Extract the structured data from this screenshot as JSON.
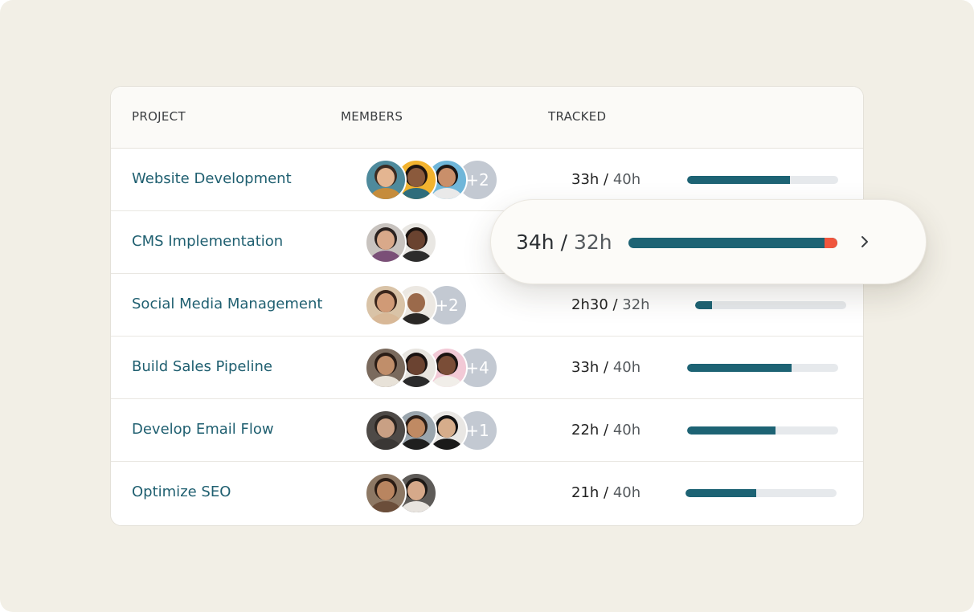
{
  "table": {
    "headers": {
      "project": "PROJECT",
      "members": "MEMBERS",
      "tracked": "TRACKED"
    },
    "rows": [
      {
        "name": "Website Development",
        "tracked": "33h",
        "total": "40h",
        "progress": 0.68,
        "avatars": [
          {
            "bg": "#4e8a9c",
            "skin": "#e4b591",
            "hair": "#3b2b22",
            "shirt": "#c58c3c"
          },
          {
            "bg": "#f2b32f",
            "skin": "#8b5a3c",
            "hair": "#1d1410",
            "shirt": "#2f6d7b"
          },
          {
            "bg": "#6fb6d9",
            "skin": "#c98f6a",
            "hair": "#1b1614",
            "shirt": "#e9e9e9"
          }
        ],
        "extra": "+2"
      },
      {
        "name": "CMS Implementation",
        "tracked": "34h",
        "total": "32h",
        "progress": 1.0,
        "avatars": [
          {
            "bg": "#c8c3bf",
            "skin": "#d9a98a",
            "hair": "#2a2220",
            "shirt": "#7a4f77"
          },
          {
            "bg": "#e9e7e3",
            "skin": "#6a4330",
            "hair": "#1a1310",
            "shirt": "#2c2c2c"
          }
        ],
        "extra": ""
      },
      {
        "name": "Social Media Management",
        "tracked": "2h30",
        "total": "32h",
        "progress": 0.11,
        "avatars": [
          {
            "bg": "#d9c3a7",
            "skin": "#d09a76",
            "hair": "#3a251b",
            "shirt": "#d8b897"
          },
          {
            "bg": "#ece8e2",
            "skin": "#9b6a4b",
            "hair": "#f1ede6",
            "shirt": "#2a2826"
          }
        ],
        "extra": "+2"
      },
      {
        "name": "Build Sales Pipeline",
        "tracked": "33h",
        "total": "40h",
        "progress": 0.69,
        "avatars": [
          {
            "bg": "#7a6a5d",
            "skin": "#c08e6a",
            "hair": "#2a1c15",
            "shirt": "#e8e2d8"
          },
          {
            "bg": "#e8e5e0",
            "skin": "#6b4331",
            "hair": "#191211",
            "shirt": "#2b2b2b"
          },
          {
            "bg": "#f2c9d6",
            "skin": "#7a4d37",
            "hair": "#1c1412",
            "shirt": "#f1eee9"
          }
        ],
        "extra": "+4"
      },
      {
        "name": "Develop Email Flow",
        "tracked": "22h",
        "total": "40h",
        "progress": 0.585,
        "avatars": [
          {
            "bg": "#4e4a47",
            "skin": "#c9a084",
            "hair": "#2b2521",
            "shirt": "#3a3735"
          },
          {
            "bg": "#9aa5ad",
            "skin": "#c08a63",
            "hair": "#2a1d16",
            "shirt": "#1f1f1f"
          },
          {
            "bg": "#e9e7e4",
            "skin": "#d6ad8b",
            "hair": "#111111",
            "shirt": "#1a1a1a"
          }
        ],
        "extra": "+1"
      },
      {
        "name": "Optimize SEO",
        "tracked": "21h",
        "total": "40h",
        "progress": 0.47,
        "avatars": [
          {
            "bg": "#8d7864",
            "skin": "#b98560",
            "hair": "#2a1c14",
            "shirt": "#6b4e3a"
          },
          {
            "bg": "#5e5b58",
            "skin": "#d6a98a",
            "hair": "#1d1916",
            "shirt": "#e8e4df"
          }
        ],
        "extra": ""
      }
    ]
  },
  "popout": {
    "tracked": "34h",
    "total": "32h",
    "progress": 1.0,
    "overrun": 0.0625,
    "icon": "chevron-right-icon"
  },
  "colors": {
    "accent": "#1d6374",
    "overrun": "#f0553d",
    "link": "#1f5f70",
    "background": "#f2efe6"
  }
}
